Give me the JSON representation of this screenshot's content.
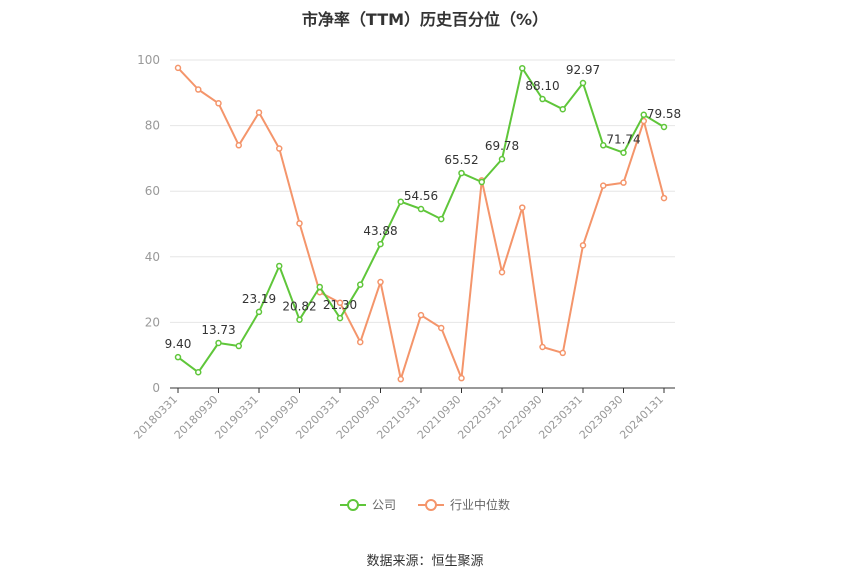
{
  "title": "市净率（TTM）历史百分位（%）",
  "source": "数据来源：恒生聚源",
  "chart_data": {
    "type": "line",
    "title": "市净率（TTM）历史百分位（%）",
    "ylim": [
      0,
      100
    ],
    "yticks": [
      0,
      20,
      40,
      60,
      80,
      100
    ],
    "grid": true,
    "legend_position": "bottom",
    "x": [
      "20180331",
      "20180630",
      "20180930",
      "20181231",
      "20190331",
      "20190630",
      "20190930",
      "20191231",
      "20200331",
      "20200630",
      "20200930",
      "20201231",
      "20210331",
      "20210630",
      "20210930",
      "20211231",
      "20220331",
      "20220630",
      "20220930",
      "20221231",
      "20230331",
      "20230630",
      "20230930",
      "20231231",
      "20240131"
    ],
    "xtick_labels": [
      "20180331",
      "20180930",
      "20190331",
      "20190930",
      "20200331",
      "20200930",
      "20210331",
      "20210930",
      "20220331",
      "20220930",
      "20230331",
      "20230930",
      "20240131"
    ],
    "series": [
      {
        "name": "公司",
        "color": "#5fc63a",
        "values": [
          9.4,
          4.8,
          13.73,
          12.8,
          23.19,
          37.2,
          20.82,
          30.8,
          21.3,
          31.5,
          43.88,
          56.8,
          54.56,
          51.5,
          65.52,
          62.8,
          69.78,
          97.5,
          88.1,
          85.0,
          92.97,
          74.0,
          71.74,
          83.3,
          79.58
        ],
        "labels": {
          "0": "9.40",
          "2": "13.73",
          "4": "23.19",
          "6": "20.82",
          "8": "21.30",
          "10": "43.88",
          "12": "54.56",
          "14": "65.52",
          "16": "69.78",
          "18": "88.10",
          "20": "92.97",
          "22": "71.74",
          "24": "79.58"
        }
      },
      {
        "name": "行业中位数",
        "color": "#f4956b",
        "values": [
          97.6,
          91.0,
          86.8,
          74.0,
          84.0,
          73.0,
          50.2,
          29.2,
          26.0,
          14.0,
          32.3,
          2.7,
          22.2,
          18.3,
          3.0,
          63.3,
          35.3,
          55.0,
          12.5,
          10.7,
          43.5,
          61.7,
          62.6,
          81.4,
          57.9
        ]
      }
    ]
  }
}
